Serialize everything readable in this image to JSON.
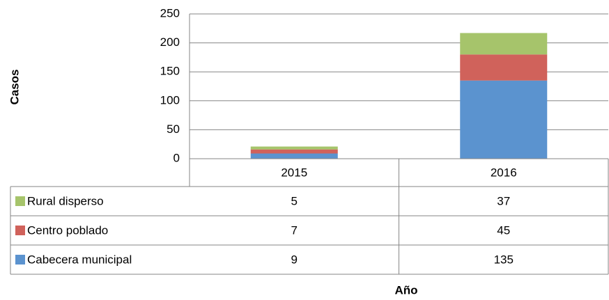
{
  "chart_data": {
    "type": "bar",
    "stacked": true,
    "y_label": "Casos",
    "x_label": "Año",
    "categories": [
      "2015",
      "2016"
    ],
    "series": [
      {
        "name": "Cabecera municipal",
        "color": "#5b93cf",
        "values": [
          9,
          135
        ]
      },
      {
        "name": "Centro poblado",
        "color": "#d0625b",
        "values": [
          7,
          45
        ]
      },
      {
        "name": "Rural disperso",
        "color": "#a6c46b",
        "values": [
          5,
          37
        ]
      }
    ],
    "ylim": [
      0,
      250
    ],
    "yticks": [
      0,
      50,
      100,
      150,
      200,
      250
    ],
    "grid": true
  }
}
